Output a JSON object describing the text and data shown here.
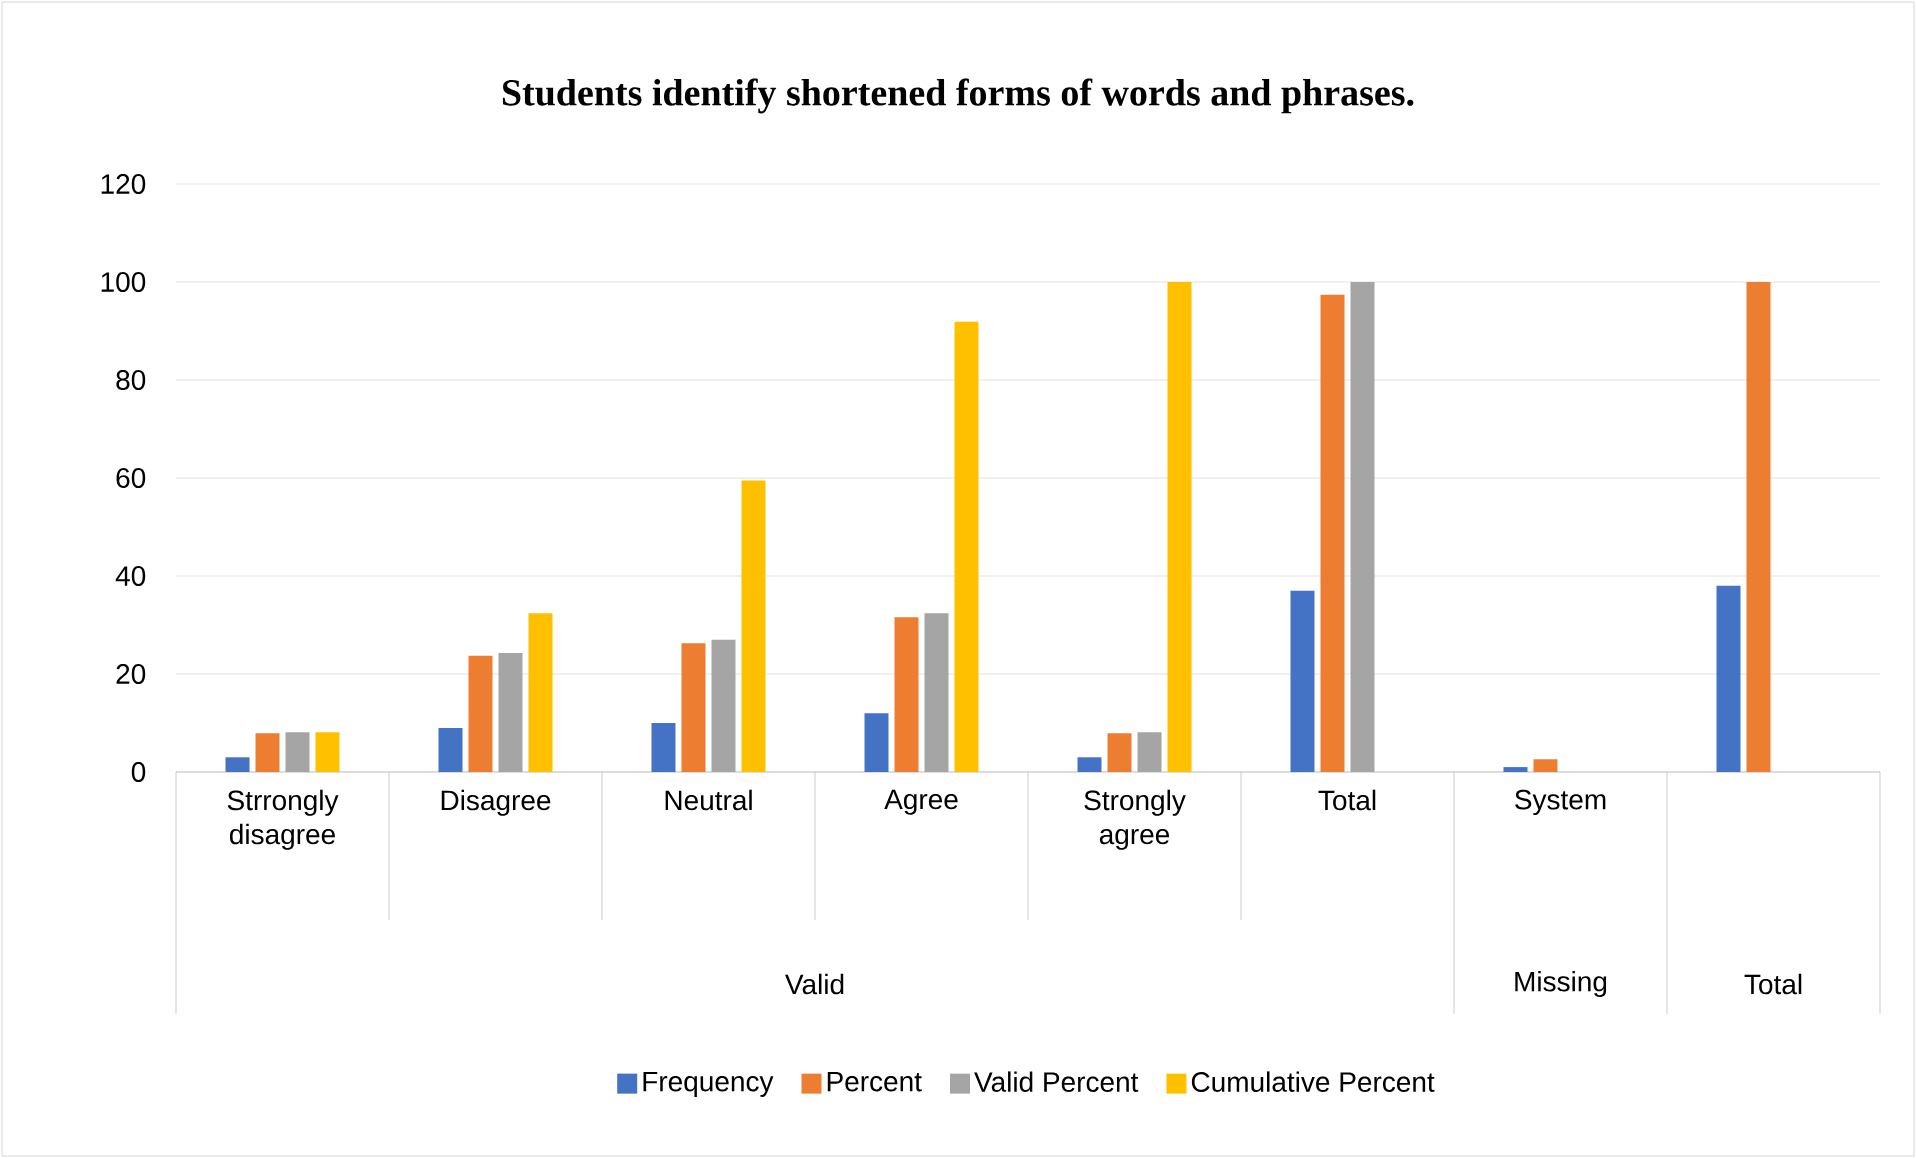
{
  "chart_data": {
    "type": "bar",
    "title": "Students identify shortened forms of words and phrases.",
    "categories": [
      "Strrongly disagree",
      "Disagree",
      "Neutral",
      "Agree",
      "Strongly agree",
      "Total",
      "System",
      null
    ],
    "annotations": [
      "Valid",
      "Missing",
      "Total"
    ],
    "series": [
      {
        "name": "Frequency",
        "color": "#4472c4",
        "values": [
          3,
          9,
          10,
          12,
          3,
          37,
          1,
          38
        ]
      },
      {
        "name": "Percent",
        "color": "#ed7d31",
        "values": [
          7.9,
          23.7,
          26.3,
          31.6,
          7.9,
          97.4,
          2.6,
          100
        ]
      },
      {
        "name": "Valid Percent",
        "color": "#a5a5a5",
        "values": [
          8.1,
          24.3,
          27.0,
          32.4,
          8.1,
          100,
          null,
          null
        ]
      },
      {
        "name": "Cumulative Percent",
        "color": "#ffc000",
        "values": [
          8.1,
          32.4,
          59.5,
          91.9,
          100,
          null,
          null,
          null
        ]
      }
    ],
    "ylim": [
      0,
      120
    ],
    "yticks": [
      0,
      20,
      40,
      60,
      80,
      100,
      120
    ],
    "grid": "y",
    "legend": "bottom"
  }
}
